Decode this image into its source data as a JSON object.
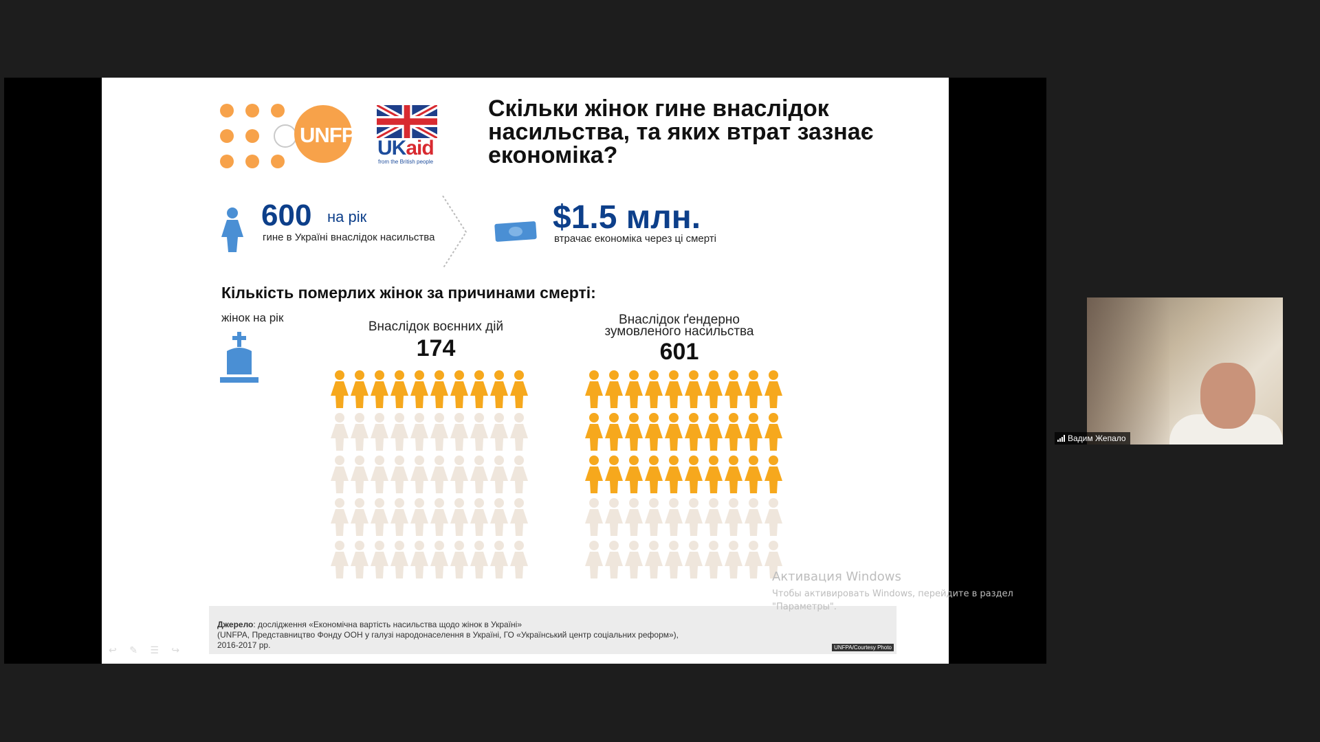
{
  "slide": {
    "title": "Скільки жінок гине внаслідок насильства, та яких втрат зазнає економіка?",
    "logos": {
      "unfpa": "UNFPA",
      "ukaid_uk": "UK",
      "ukaid_aid": "aid",
      "ukaid_sub": "from the British people"
    },
    "stat1": {
      "number": "600",
      "unit": "на рік",
      "description": "гине в Україні внаслідок насильства"
    },
    "stat2": {
      "number": "$1.5 млн.",
      "description": "втрачає економіка через ці смерті"
    },
    "section_title": "Кількість померлих жінок за причинами смерті:",
    "legend_label": "жінок на рік",
    "groups": [
      {
        "label": "Внаслідок воєнних дій",
        "count": "174",
        "rows_filled": 1,
        "rows_total": 5,
        "per_row": 10
      },
      {
        "label": "Внаслідок ґендерно зумовленого насильства",
        "count": "601",
        "rows_filled": 3,
        "rows_total": 5,
        "per_row": 10
      }
    ],
    "source": {
      "label": "Джерело",
      "line1": ": дослідження «Економічна вартість насильства щодо жінок в Україні»",
      "line2": "(UNFPA, Представництво Фонду ООН у галузі народонаселення в Україні, ГО «Український центр соціальних реформ»),",
      "line3": "2016-2017 рр.",
      "credit": "UNFPA/Courtesy Photo"
    },
    "colors": {
      "orange": "#f7a24a",
      "figure_filled": "#f6a81d",
      "figure_faded": "#efe6dc",
      "navy": "#0d3f8a",
      "blue_icon": "#4a8fd4"
    }
  },
  "windows_activation": {
    "title": "Активация Windows",
    "subtitle": "Чтобы активировать Windows, перейдите в раздел \"Параметры\"."
  },
  "participant": {
    "name": "Вадим Жепало"
  }
}
